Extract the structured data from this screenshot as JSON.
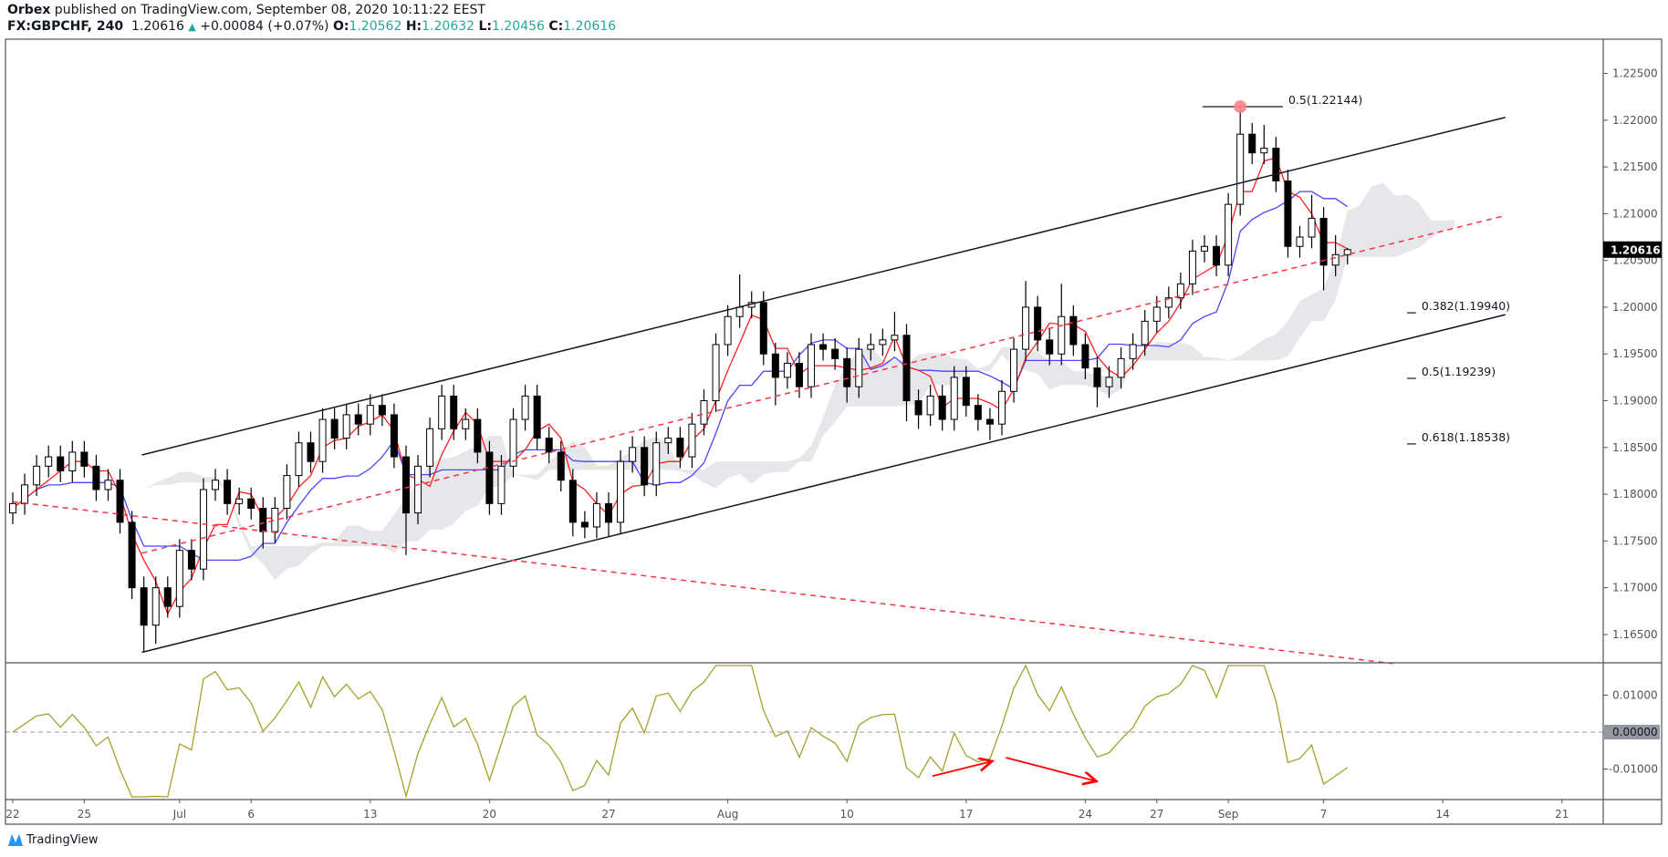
{
  "header": {
    "publisher": "Orbex",
    "published_text": " published on TradingView.com, September 08, 2020 10:11:22 EEST",
    "symbol": "FX:GBPCHF, 240",
    "last": "1.20616",
    "change": "+0.00084 (+0.07%)",
    "change_direction_icon": "triangle-up-icon",
    "o_label": "O:",
    "o": "1.20562",
    "h_label": "H:",
    "h": "1.20632",
    "l_label": "L:",
    "l": "1.20456",
    "c_label": "C:",
    "c": "1.20616"
  },
  "footer": {
    "brand": "TradingView"
  },
  "colors": {
    "up_text": "#26a69a",
    "tenkan": "#ff1f1f",
    "kijun": "#4b45f5",
    "cloud": "#e6e7ea",
    "oscillator": "#a3a12b",
    "channel": "#131722",
    "dashed_trend": "#f23645",
    "fib_marker": "#f7858c"
  },
  "chart_data": [
    {
      "type": "candlestick",
      "symbol": "FX:GBPCHF",
      "interval": "240",
      "indicators": [
        "Ichimoku Cloud"
      ],
      "y_ticks": [
        "1.16500",
        "1.17000",
        "1.17500",
        "1.18000",
        "1.18500",
        "1.19000",
        "1.19500",
        "1.20000",
        "1.20500",
        "1.21000",
        "1.21500",
        "1.22000",
        "1.22500"
      ],
      "ylim": [
        1.162,
        1.2287
      ],
      "last_price_label": "1.20616",
      "x_ticks": [
        {
          "label": "22",
          "date": "2020-06-22"
        },
        {
          "label": "25",
          "date": "2020-06-25"
        },
        {
          "label": "Jul",
          "date": "2020-07-01"
        },
        {
          "label": "6",
          "date": "2020-07-06"
        },
        {
          "label": "13",
          "date": "2020-07-13"
        },
        {
          "label": "20",
          "date": "2020-07-20"
        },
        {
          "label": "27",
          "date": "2020-07-27"
        },
        {
          "label": "Aug",
          "date": "2020-08-03"
        },
        {
          "label": "10",
          "date": "2020-08-10"
        },
        {
          "label": "17",
          "date": "2020-08-17"
        },
        {
          "label": "24",
          "date": "2020-08-24"
        },
        {
          "label": "27",
          "date": "2020-08-27"
        },
        {
          "label": "Sep",
          "date": "2020-09-01"
        },
        {
          "label": "7",
          "date": "2020-09-07"
        },
        {
          "label": "14",
          "date": "2020-09-14"
        },
        {
          "label": "21",
          "date": "2020-09-21"
        }
      ],
      "first_open": 1.178,
      "close": [
        1.179,
        1.181,
        1.183,
        1.184,
        1.1825,
        1.1845,
        1.183,
        1.1805,
        1.1815,
        1.177,
        1.17,
        1.166,
        1.17,
        1.168,
        1.174,
        1.172,
        1.1805,
        1.1815,
        1.179,
        1.1795,
        1.1785,
        1.176,
        1.1785,
        1.182,
        1.1855,
        1.1835,
        1.188,
        1.186,
        1.1885,
        1.1875,
        1.1895,
        1.1885,
        1.184,
        1.178,
        1.183,
        1.187,
        1.1905,
        1.187,
        1.188,
        1.1845,
        1.179,
        1.183,
        1.188,
        1.1905,
        1.186,
        1.1845,
        1.1815,
        1.177,
        1.1765,
        1.179,
        1.177,
        1.1835,
        1.185,
        1.181,
        1.1855,
        1.186,
        1.184,
        1.1875,
        1.19,
        1.196,
        1.199,
        1.2,
        1.2005,
        1.195,
        1.1925,
        1.194,
        1.1915,
        1.196,
        1.1955,
        1.1945,
        1.1915,
        1.1955,
        1.196,
        1.1965,
        1.197,
        1.19,
        1.1885,
        1.1905,
        1.188,
        1.1925,
        1.1895,
        1.188,
        1.1875,
        1.191,
        1.1955,
        1.2,
        1.1965,
        1.195,
        1.199,
        1.196,
        1.1935,
        1.1915,
        1.1925,
        1.1945,
        1.196,
        1.1985,
        1.2,
        1.201,
        1.2025,
        1.206,
        1.2065,
        1.2045,
        1.211,
        1.2185,
        1.2165,
        1.217,
        1.2135,
        1.2065,
        1.2075,
        1.2095,
        1.2045,
        1.20562,
        1.20616
      ],
      "high": [
        1.1802,
        1.1822,
        1.1842,
        1.1852,
        1.1852,
        1.1857,
        1.1857,
        1.1842,
        1.1827,
        1.1827,
        1.1782,
        1.1712,
        1.1712,
        1.1712,
        1.1752,
        1.1752,
        1.1817,
        1.1827,
        1.1827,
        1.1807,
        1.1807,
        1.1797,
        1.1797,
        1.1832,
        1.1867,
        1.1867,
        1.1892,
        1.1892,
        1.1897,
        1.1897,
        1.1907,
        1.1907,
        1.1897,
        1.1852,
        1.1842,
        1.1882,
        1.1917,
        1.1917,
        1.1892,
        1.1892,
        1.1857,
        1.1842,
        1.1892,
        1.1917,
        1.1917,
        1.1872,
        1.1857,
        1.1827,
        1.1782,
        1.1802,
        1.1802,
        1.1847,
        1.1862,
        1.1862,
        1.1867,
        1.1872,
        1.1872,
        1.1887,
        1.1912,
        1.1972,
        1.2002,
        1.2035,
        1.2017,
        1.2017,
        1.1962,
        1.1952,
        1.1952,
        1.1972,
        1.1972,
        1.1967,
        1.1957,
        1.1967,
        1.1972,
        1.1977,
        1.1995,
        1.1982,
        1.1912,
        1.1917,
        1.1917,
        1.1937,
        1.1937,
        1.1907,
        1.1892,
        1.1922,
        1.1967,
        1.2028,
        1.2012,
        1.1977,
        1.2025,
        1.2002,
        1.1972,
        1.1947,
        1.1937,
        1.1957,
        1.1972,
        1.1997,
        1.2012,
        1.2022,
        1.2037,
        1.2072,
        1.2077,
        1.2077,
        1.2122,
        1.22144,
        1.2197,
        1.2195,
        1.2182,
        1.2147,
        1.2087,
        1.212,
        1.2107,
        1.2077,
        1.20632
      ],
      "low": [
        1.1768,
        1.1778,
        1.1798,
        1.1818,
        1.1813,
        1.1813,
        1.1818,
        1.1793,
        1.1793,
        1.1758,
        1.1688,
        1.1632,
        1.164,
        1.1668,
        1.1668,
        1.1708,
        1.1708,
        1.1793,
        1.1778,
        1.1778,
        1.1773,
        1.1742,
        1.1748,
        1.1773,
        1.1808,
        1.1823,
        1.1823,
        1.1848,
        1.1848,
        1.1863,
        1.1863,
        1.1873,
        1.1828,
        1.1735,
        1.1768,
        1.1818,
        1.1858,
        1.1858,
        1.1858,
        1.1833,
        1.1778,
        1.1778,
        1.1818,
        1.1868,
        1.1848,
        1.1833,
        1.1803,
        1.1755,
        1.1753,
        1.1753,
        1.1755,
        1.1758,
        1.1823,
        1.1798,
        1.1798,
        1.1843,
        1.1828,
        1.1828,
        1.1863,
        1.1888,
        1.1948,
        1.1978,
        1.1988,
        1.1938,
        1.1895,
        1.1913,
        1.1903,
        1.1903,
        1.1943,
        1.1933,
        1.1898,
        1.1903,
        1.1943,
        1.1948,
        1.1953,
        1.1878,
        1.187,
        1.1873,
        1.1868,
        1.1868,
        1.1883,
        1.1868,
        1.1858,
        1.1863,
        1.1898,
        1.1943,
        1.1953,
        1.1938,
        1.1938,
        1.1948,
        1.1923,
        1.1893,
        1.1903,
        1.1913,
        1.1933,
        1.1948,
        1.1973,
        1.1988,
        1.1998,
        1.2013,
        1.2048,
        1.2033,
        1.2033,
        1.2098,
        1.2153,
        1.2153,
        1.2123,
        1.2053,
        1.2053,
        1.2063,
        1.2018,
        1.2033,
        1.20456
      ],
      "drawings": {
        "channel_upper": [
          {
            "date": "2020-06-29 10:00",
            "price": 1.1842
          },
          {
            "date": "2020-09-16 15:00",
            "price": 1.2203
          }
        ],
        "channel_lower": [
          {
            "date": "2020-06-29 10:00",
            "price": 1.1631
          },
          {
            "date": "2020-09-16 15:00",
            "price": 1.1992
          }
        ],
        "channel_mid_dashed": [
          {
            "date": "2020-06-29 10:00",
            "price": 1.1737
          },
          {
            "date": "2020-09-16 15:00",
            "price": 1.2098
          }
        ],
        "descending_dashed": [
          {
            "date": "2020-06-22 00:00",
            "price": 1.1792
          },
          {
            "date": "2020-09-09 22:00",
            "price": 1.1619
          }
        ],
        "fib_levels": [
          {
            "label": "0.5(1.22144)",
            "price": 1.22144,
            "from": "2020-08-28 22:00",
            "to": "2020-09-03 07:00"
          },
          {
            "label": "0.382(1.19940)",
            "price": 1.1994,
            "from": "2020-09-10 12:00",
            "to": "2020-09-10 21:00"
          },
          {
            "label": "0.5(1.19239)",
            "price": 1.19239,
            "from": "2020-09-10 12:00",
            "to": "2020-09-10 21:00"
          },
          {
            "label": "0.618(1.18538)",
            "price": 1.18538,
            "from": "2020-09-10 12:00",
            "to": "2020-09-10 21:00"
          }
        ],
        "high_marker": {
          "date": "2020-09-01 12:00",
          "price": 1.22144
        }
      }
    },
    {
      "type": "line",
      "pane": "oscillator",
      "y_ticks": [
        "0.01000",
        "-0.01000"
      ],
      "zero_label": "0.00000",
      "ylim": [
        -0.0185,
        0.0185
      ],
      "arrows": [
        {
          "from": {
            "date": "2020-08-13 14:00",
            "value": -0.0119
          },
          "to": {
            "date": "2020-08-18 02:00",
            "value": -0.0079
          }
        },
        {
          "from": {
            "date": "2020-08-18 16:00",
            "value": -0.0069
          },
          "to": {
            "date": "2020-08-24 11:00",
            "value": -0.0133
          }
        }
      ]
    }
  ]
}
